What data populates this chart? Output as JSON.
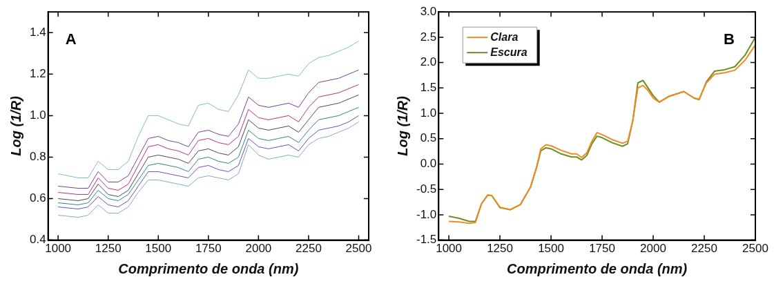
{
  "chart_data": [
    {
      "type": "line",
      "annotations": [
        "A"
      ],
      "xlabel": "Comprimento de onda (nm)",
      "ylabel": "Log (1/R)",
      "xlim": [
        950,
        2550
      ],
      "ylim": [
        0.4,
        1.5
      ],
      "xticks": [
        1000,
        1250,
        1500,
        1750,
        2000,
        2250,
        2500
      ],
      "yticks": [
        0.4,
        0.6,
        0.8,
        {
          "value": 1,
          "label": "1.0"
        },
        1.2,
        1.4
      ],
      "grid": false,
      "legend": false,
      "marker": "none",
      "line_style": "solid",
      "x": [
        1000,
        1100,
        1150,
        1200,
        1250,
        1300,
        1350,
        1400,
        1450,
        1500,
        1550,
        1600,
        1650,
        1700,
        1750,
        1800,
        1850,
        1900,
        1950,
        2000,
        2050,
        2100,
        2150,
        2200,
        2250,
        2300,
        2350,
        2400,
        2450,
        2500
      ],
      "series": [
        {
          "color": "#7fbfbf",
          "values": [
            0.72,
            0.7,
            0.7,
            0.78,
            0.74,
            0.74,
            0.78,
            0.9,
            1.0,
            1.0,
            0.98,
            0.96,
            0.95,
            1.05,
            1.06,
            1.03,
            1.02,
            1.1,
            1.22,
            1.18,
            1.18,
            1.19,
            1.2,
            1.19,
            1.25,
            1.28,
            1.29,
            1.31,
            1.33,
            1.36
          ]
        },
        {
          "color": "#7b3f99",
          "values": [
            0.66,
            0.65,
            0.65,
            0.73,
            0.68,
            0.68,
            0.71,
            0.8,
            0.89,
            0.9,
            0.88,
            0.87,
            0.85,
            0.92,
            0.93,
            0.91,
            0.9,
            0.96,
            1.09,
            1.05,
            1.04,
            1.05,
            1.06,
            1.04,
            1.11,
            1.16,
            1.17,
            1.18,
            1.2,
            1.22
          ]
        },
        {
          "color": "#c0307f",
          "values": [
            0.63,
            0.62,
            0.62,
            0.7,
            0.65,
            0.64,
            0.67,
            0.76,
            0.85,
            0.86,
            0.84,
            0.83,
            0.81,
            0.88,
            0.89,
            0.87,
            0.86,
            0.9,
            1.03,
            0.99,
            0.98,
            0.99,
            1.0,
            0.97,
            1.04,
            1.09,
            1.1,
            1.11,
            1.13,
            1.15
          ]
        },
        {
          "color": "#4a4a4a",
          "values": [
            0.6,
            0.59,
            0.6,
            0.67,
            0.62,
            0.61,
            0.64,
            0.72,
            0.8,
            0.81,
            0.8,
            0.79,
            0.77,
            0.83,
            0.84,
            0.82,
            0.81,
            0.85,
            0.98,
            0.94,
            0.93,
            0.94,
            0.95,
            0.92,
            0.98,
            1.04,
            1.05,
            1.06,
            1.08,
            1.1
          ]
        },
        {
          "color": "#2a8a80",
          "values": [
            0.58,
            0.57,
            0.58,
            0.64,
            0.6,
            0.59,
            0.62,
            0.69,
            0.76,
            0.77,
            0.76,
            0.75,
            0.73,
            0.79,
            0.8,
            0.78,
            0.77,
            0.8,
            0.93,
            0.89,
            0.88,
            0.89,
            0.9,
            0.87,
            0.93,
            0.98,
            0.99,
            1.0,
            1.02,
            1.04
          ]
        },
        {
          "color": "#6a4fc0",
          "values": [
            0.56,
            0.55,
            0.56,
            0.61,
            0.57,
            0.56,
            0.59,
            0.66,
            0.73,
            0.73,
            0.72,
            0.71,
            0.7,
            0.75,
            0.76,
            0.74,
            0.73,
            0.76,
            0.89,
            0.85,
            0.84,
            0.85,
            0.86,
            0.83,
            0.89,
            0.93,
            0.94,
            0.95,
            0.97,
            1.0
          ]
        },
        {
          "color": "#7fb0b8",
          "values": [
            0.52,
            0.51,
            0.52,
            0.57,
            0.53,
            0.53,
            0.56,
            0.63,
            0.69,
            0.69,
            0.68,
            0.67,
            0.66,
            0.7,
            0.71,
            0.7,
            0.69,
            0.72,
            0.86,
            0.81,
            0.79,
            0.8,
            0.81,
            0.8,
            0.86,
            0.89,
            0.9,
            0.92,
            0.94,
            0.97
          ]
        }
      ]
    },
    {
      "type": "line",
      "annotations": [
        "B"
      ],
      "xlabel": "Comprimento de onda (nm)",
      "ylabel": "Log (1/R)",
      "xlim": [
        950,
        2500
      ],
      "ylim": [
        -1.5,
        3
      ],
      "xticks": [
        1000,
        1250,
        1500,
        1750,
        2000,
        2250,
        2500
      ],
      "yticks": [
        {
          "value": -1.5,
          "label": "-1.5"
        },
        {
          "value": -1,
          "label": "-1.0"
        },
        -0.5,
        {
          "value": 0,
          "label": "0.0"
        },
        0.5,
        {
          "value": 1,
          "label": "1.0"
        },
        1.5,
        {
          "value": 2,
          "label": "2.0"
        },
        2.5,
        {
          "value": 3,
          "label": "3.0"
        }
      ],
      "grid": false,
      "legend": "top left",
      "marker": "none",
      "line_style": "solid",
      "x": [
        1000,
        1050,
        1100,
        1130,
        1160,
        1190,
        1210,
        1250,
        1300,
        1350,
        1400,
        1430,
        1450,
        1475,
        1500,
        1550,
        1600,
        1625,
        1650,
        1675,
        1700,
        1725,
        1750,
        1800,
        1850,
        1875,
        1900,
        1925,
        1950,
        1975,
        2000,
        2030,
        2075,
        2150,
        2200,
        2225,
        2260,
        2300,
        2350,
        2400,
        2450,
        2500
      ],
      "series": [
        {
          "name": "Clara",
          "color": "#f08a24",
          "values": [
            -1.13,
            -1.14,
            -1.17,
            -1.15,
            -0.78,
            -0.62,
            -0.62,
            -0.85,
            -0.9,
            -0.8,
            -0.45,
            -0.05,
            0.3,
            0.38,
            0.36,
            0.27,
            0.2,
            0.2,
            0.13,
            0.22,
            0.45,
            0.62,
            0.58,
            0.48,
            0.41,
            0.45,
            0.85,
            1.5,
            1.55,
            1.45,
            1.3,
            1.22,
            1.33,
            1.43,
            1.3,
            1.28,
            1.6,
            1.77,
            1.8,
            1.85,
            2.05,
            2.35
          ]
        },
        {
          "name": "Escura",
          "color": "#6b8e23",
          "values": [
            -1.03,
            -1.07,
            -1.13,
            -1.13,
            -0.78,
            -0.61,
            -0.62,
            -0.86,
            -0.9,
            -0.8,
            -0.45,
            -0.06,
            0.26,
            0.32,
            0.3,
            0.2,
            0.14,
            0.14,
            0.08,
            0.17,
            0.4,
            0.55,
            0.52,
            0.42,
            0.35,
            0.4,
            0.85,
            1.6,
            1.65,
            1.5,
            1.35,
            1.22,
            1.33,
            1.43,
            1.3,
            1.27,
            1.62,
            1.83,
            1.86,
            1.92,
            2.15,
            2.5
          ]
        }
      ]
    }
  ]
}
